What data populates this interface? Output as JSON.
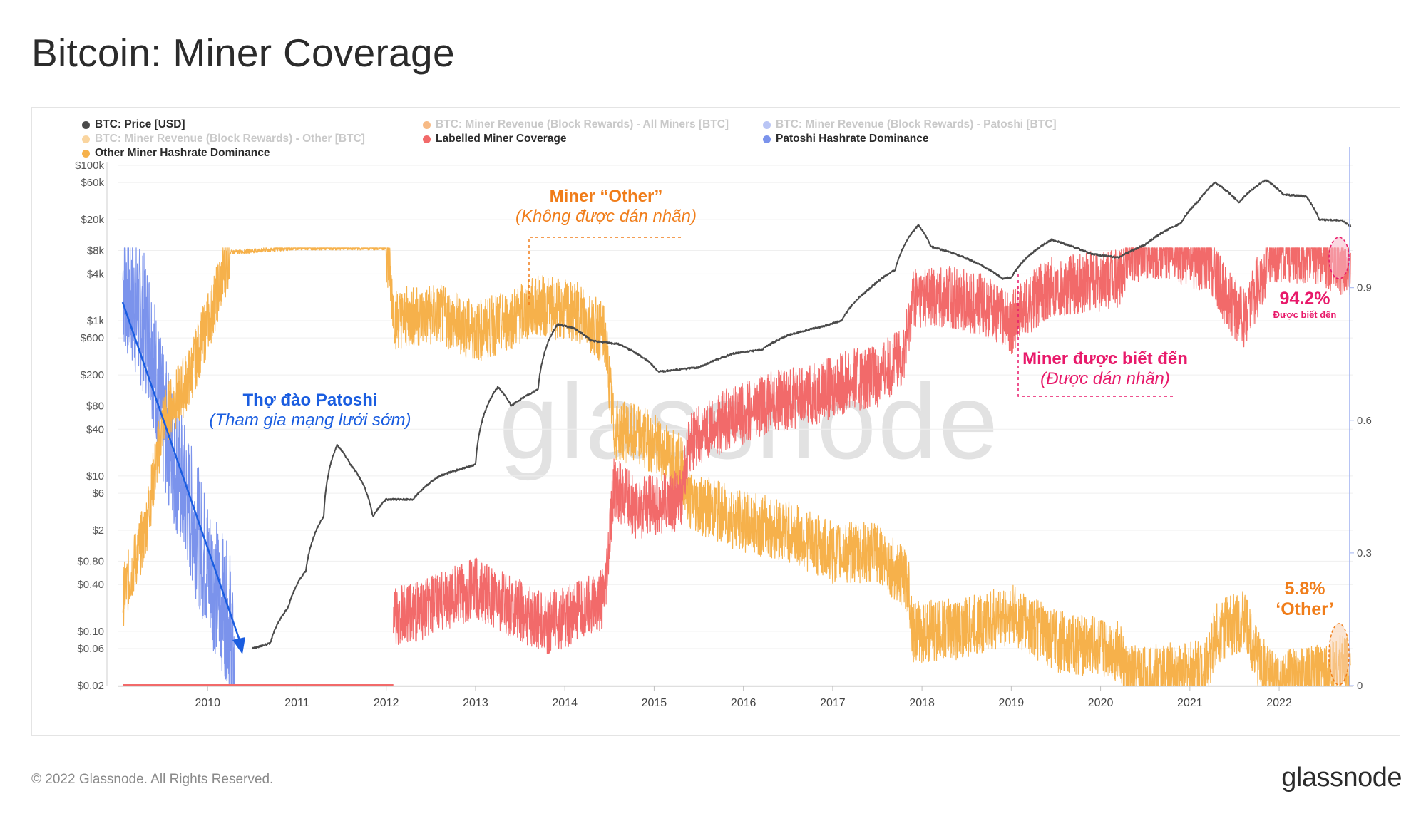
{
  "header": {
    "title": "Bitcoin: Miner Coverage"
  },
  "footer": {
    "copyright": "© 2022 Glassnode. All Rights Reserved.",
    "brand": "glassnode"
  },
  "watermark": "glassnode",
  "legend": [
    {
      "label": "BTC: Price [USD]",
      "color": "#4a4a4a",
      "active": true
    },
    {
      "label": "BTC: Miner Revenue (Block Rewards) - All Miners [BTC]",
      "color": "#f07d1a",
      "active": false
    },
    {
      "label": "BTC: Miner Revenue (Block Rewards) - Patoshi [BTC]",
      "color": "#7b93ec",
      "active": false
    },
    {
      "label": "BTC: Miner Revenue (Block Rewards) - Other [BTC]",
      "color": "#f6b14b",
      "active": false
    },
    {
      "label": "Labelled Miner Coverage",
      "color": "#f26a6a",
      "active": true
    },
    {
      "label": "Patoshi Hashrate Dominance",
      "color": "#7b93ec",
      "active": true
    },
    {
      "label": "Other Miner Hashrate Dominance",
      "color": "#f6b14b",
      "active": true
    }
  ],
  "annotations": {
    "other_title": "Miner “Other”",
    "other_sub": "(Không được dán nhãn)",
    "known_title": "Miner được biết đến",
    "known_sub": "(Được dán nhãn)",
    "patoshi_title": "Thợ đào Patoshi",
    "patoshi_sub": "(Tham gia mạng lưới sớm)",
    "coverage_value": "94.2%",
    "coverage_caption": "Được biết đến",
    "other_value": "5.8%",
    "other_caption": "‘Other’"
  },
  "colors": {
    "price": "#4a4a4a",
    "labelled": "#f26a6a",
    "patoshi": "#7b93ec",
    "other": "#f6b14b",
    "ann_orange": "#f07d1a",
    "ann_pink": "#e8196a",
    "ann_blue": "#1a5de0"
  },
  "chart_data": {
    "type": "line",
    "x_ticks": [
      "2010",
      "2011",
      "2012",
      "2013",
      "2014",
      "2015",
      "2016",
      "2017",
      "2018",
      "2019",
      "2020",
      "2021",
      "2022"
    ],
    "y_left": {
      "scale": "log",
      "ticks": [
        "$100k",
        "$60k",
        "$20k",
        "$8k",
        "$4k",
        "$1k",
        "$600",
        "$200",
        "$80",
        "$40",
        "$10",
        "$6",
        "$2",
        "$0.80",
        "$0.40",
        "$0.10",
        "$0.06",
        "$0.02"
      ],
      "tick_values": [
        100000,
        60000,
        20000,
        8000,
        4000,
        1000,
        600,
        200,
        80,
        40,
        10,
        6,
        2,
        0.8,
        0.4,
        0.1,
        0.06,
        0.02
      ]
    },
    "y_right": {
      "ticks": [
        "0.9",
        "0.6",
        "0.3",
        "0"
      ],
      "tick_values": [
        0.9,
        0.6,
        0.3,
        0
      ],
      "range": [
        0,
        1.18
      ]
    },
    "series": [
      {
        "name": "BTC: Price [USD]",
        "axis": "left",
        "points": [
          [
            2010.5,
            0.06
          ],
          [
            2010.7,
            0.07
          ],
          [
            2010.9,
            0.2
          ],
          [
            2011.1,
            0.6
          ],
          [
            2011.3,
            3
          ],
          [
            2011.45,
            25
          ],
          [
            2011.6,
            14
          ],
          [
            2011.85,
            3
          ],
          [
            2012.0,
            5
          ],
          [
            2012.3,
            5
          ],
          [
            2012.6,
            10
          ],
          [
            2012.9,
            13
          ],
          [
            2013.0,
            14
          ],
          [
            2013.25,
            140
          ],
          [
            2013.4,
            80
          ],
          [
            2013.7,
            130
          ],
          [
            2013.92,
            900
          ],
          [
            2014.1,
            800
          ],
          [
            2014.3,
            550
          ],
          [
            2014.6,
            500
          ],
          [
            2014.9,
            320
          ],
          [
            2015.05,
            220
          ],
          [
            2015.5,
            250
          ],
          [
            2015.9,
            380
          ],
          [
            2016.2,
            420
          ],
          [
            2016.5,
            650
          ],
          [
            2016.9,
            850
          ],
          [
            2017.1,
            1000
          ],
          [
            2017.4,
            2500
          ],
          [
            2017.7,
            4500
          ],
          [
            2017.96,
            17000
          ],
          [
            2018.1,
            9000
          ],
          [
            2018.4,
            7000
          ],
          [
            2018.9,
            3500
          ],
          [
            2019.0,
            3600
          ],
          [
            2019.45,
            11000
          ],
          [
            2019.9,
            7200
          ],
          [
            2020.2,
            6500
          ],
          [
            2020.5,
            9500
          ],
          [
            2020.9,
            18000
          ],
          [
            2021.1,
            35000
          ],
          [
            2021.28,
            60000
          ],
          [
            2021.55,
            33000
          ],
          [
            2021.85,
            65000
          ],
          [
            2022.05,
            42000
          ],
          [
            2022.3,
            40000
          ],
          [
            2022.45,
            20000
          ],
          [
            2022.7,
            19500
          ],
          [
            2022.8,
            16500
          ]
        ]
      },
      {
        "name": "Labelled Miner Coverage",
        "axis": "right",
        "points": [
          [
            2012.08,
            0.15
          ],
          [
            2012.5,
            0.18
          ],
          [
            2013.0,
            0.22
          ],
          [
            2013.5,
            0.17
          ],
          [
            2013.8,
            0.14
          ],
          [
            2014.2,
            0.17
          ],
          [
            2014.45,
            0.2
          ],
          [
            2014.55,
            0.45
          ],
          [
            2014.8,
            0.4
          ],
          [
            2015.3,
            0.42
          ],
          [
            2015.4,
            0.55
          ],
          [
            2015.8,
            0.6
          ],
          [
            2016.3,
            0.64
          ],
          [
            2016.8,
            0.66
          ],
          [
            2017.2,
            0.69
          ],
          [
            2017.5,
            0.7
          ],
          [
            2017.8,
            0.75
          ],
          [
            2017.9,
            0.88
          ],
          [
            2018.3,
            0.88
          ],
          [
            2018.7,
            0.86
          ],
          [
            2019.0,
            0.82
          ],
          [
            2019.4,
            0.9
          ],
          [
            2019.8,
            0.91
          ],
          [
            2020.2,
            0.92
          ],
          [
            2020.3,
            0.98
          ],
          [
            2020.7,
            0.99
          ],
          [
            2021.0,
            0.97
          ],
          [
            2021.2,
            0.96
          ],
          [
            2021.4,
            0.88
          ],
          [
            2021.6,
            0.83
          ],
          [
            2021.8,
            0.92
          ],
          [
            2021.9,
            0.98
          ],
          [
            2022.4,
            0.98
          ],
          [
            2022.8,
            0.942
          ]
        ]
      },
      {
        "name": "Patoshi Hashrate Dominance",
        "axis": "right",
        "points": [
          [
            2009.05,
            0.92
          ],
          [
            2009.2,
            0.85
          ],
          [
            2009.35,
            0.8
          ],
          [
            2009.5,
            0.6
          ],
          [
            2009.65,
            0.5
          ],
          [
            2009.8,
            0.4
          ],
          [
            2009.95,
            0.3
          ],
          [
            2010.1,
            0.22
          ],
          [
            2010.25,
            0.15
          ],
          [
            2010.3,
            0
          ]
        ]
      },
      {
        "name": "Other Miner Hashrate Dominance",
        "axis": "right",
        "points": [
          [
            2009.05,
            0.2
          ],
          [
            2009.3,
            0.35
          ],
          [
            2009.5,
            0.6
          ],
          [
            2009.8,
            0.7
          ],
          [
            2010.05,
            0.85
          ],
          [
            2010.25,
            0.98
          ],
          [
            2011.0,
            0.99
          ],
          [
            2012.0,
            0.99
          ],
          [
            2012.1,
            0.83
          ],
          [
            2012.6,
            0.84
          ],
          [
            2013.0,
            0.8
          ],
          [
            2013.3,
            0.82
          ],
          [
            2013.7,
            0.86
          ],
          [
            2014.2,
            0.84
          ],
          [
            2014.45,
            0.79
          ],
          [
            2014.55,
            0.58
          ],
          [
            2014.9,
            0.56
          ],
          [
            2015.3,
            0.5
          ],
          [
            2015.4,
            0.42
          ],
          [
            2016.0,
            0.37
          ],
          [
            2016.5,
            0.35
          ],
          [
            2017.0,
            0.3
          ],
          [
            2017.5,
            0.3
          ],
          [
            2017.85,
            0.23
          ],
          [
            2017.9,
            0.12
          ],
          [
            2018.5,
            0.13
          ],
          [
            2019.0,
            0.16
          ],
          [
            2019.5,
            0.1
          ],
          [
            2020.2,
            0.08
          ],
          [
            2020.3,
            0.02
          ],
          [
            2021.0,
            0.03
          ],
          [
            2021.2,
            0.05
          ],
          [
            2021.3,
            0.12
          ],
          [
            2021.6,
            0.15
          ],
          [
            2021.75,
            0.07
          ],
          [
            2021.9,
            0.01
          ],
          [
            2022.4,
            0.02
          ],
          [
            2022.8,
            0.058
          ]
        ]
      }
    ]
  }
}
